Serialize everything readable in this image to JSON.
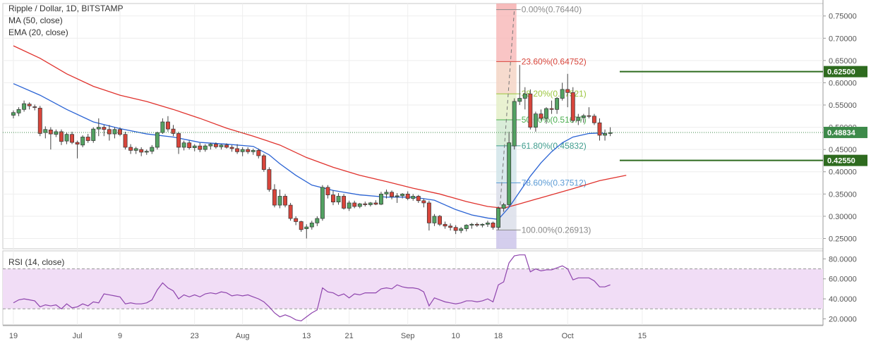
{
  "chart_data": [
    {
      "type": "candlestick",
      "title": "Ripple / Dollar, 1D, BITSTAMP",
      "indicators": [
        "MA (50, close)",
        "EMA (20, close)"
      ],
      "colors": {
        "up": "#53a262",
        "down": "#d8453b",
        "ma50": "#e0322d",
        "ema20": "#2a63d4",
        "fib_zone_up": "#f4a0a0",
        "fib_zone_down": "#c9c2e8"
      },
      "y_ticks": [
        "0.75000",
        "0.70000",
        "0.65000",
        "0.60000",
        "0.55000",
        "0.50000",
        "0.45000",
        "0.40000",
        "0.35000",
        "0.30000",
        "0.25000"
      ],
      "ylim": [
        0.227,
        0.778
      ],
      "x_ticks": [
        {
          "label": "19",
          "day": 0
        },
        {
          "label": "Jul",
          "day": 12
        },
        {
          "label": "9",
          "day": 20
        },
        {
          "label": "23",
          "day": 34
        },
        {
          "label": "Aug",
          "day": 43
        },
        {
          "label": "13",
          "day": 55
        },
        {
          "label": "21",
          "day": 63
        },
        {
          "label": "Sep",
          "day": 74
        },
        {
          "label": "10",
          "day": 83
        },
        {
          "label": "18",
          "day": 91
        },
        {
          "label": "Oct",
          "day": 104
        },
        {
          "label": "15",
          "day": 118
        }
      ],
      "candles": [
        [
          0.527,
          0.538,
          0.52,
          0.533
        ],
        [
          0.532,
          0.545,
          0.525,
          0.54
        ],
        [
          0.54,
          0.56,
          0.535,
          0.553
        ],
        [
          0.552,
          0.556,
          0.54,
          0.548
        ],
        [
          0.546,
          0.551,
          0.538,
          0.545
        ],
        [
          0.543,
          0.548,
          0.48,
          0.486
        ],
        [
          0.488,
          0.502,
          0.475,
          0.495
        ],
        [
          0.494,
          0.5,
          0.45,
          0.485
        ],
        [
          0.484,
          0.495,
          0.478,
          0.49
        ],
        [
          0.49,
          0.495,
          0.46,
          0.468
        ],
        [
          0.469,
          0.488,
          0.462,
          0.484
        ],
        [
          0.484,
          0.49,
          0.462,
          0.466
        ],
        [
          0.466,
          0.47,
          0.43,
          0.462
        ],
        [
          0.46,
          0.482,
          0.455,
          0.478
        ],
        [
          0.478,
          0.485,
          0.465,
          0.47
        ],
        [
          0.47,
          0.5,
          0.465,
          0.496
        ],
        [
          0.496,
          0.52,
          0.48,
          0.5
        ],
        [
          0.5,
          0.505,
          0.48,
          0.495
        ],
        [
          0.495,
          0.505,
          0.47,
          0.485
        ],
        [
          0.485,
          0.5,
          0.475,
          0.495
        ],
        [
          0.495,
          0.5,
          0.48,
          0.484
        ],
        [
          0.484,
          0.49,
          0.45,
          0.455
        ],
        [
          0.455,
          0.462,
          0.44,
          0.448
        ],
        [
          0.448,
          0.456,
          0.44,
          0.452
        ],
        [
          0.45,
          0.455,
          0.435,
          0.444
        ],
        [
          0.444,
          0.45,
          0.438,
          0.446
        ],
        [
          0.446,
          0.46,
          0.44,
          0.455
        ],
        [
          0.455,
          0.49,
          0.45,
          0.488
        ],
        [
          0.488,
          0.52,
          0.485,
          0.512
        ],
        [
          0.512,
          0.525,
          0.49,
          0.496
        ],
        [
          0.496,
          0.505,
          0.48,
          0.486
        ],
        [
          0.486,
          0.49,
          0.44,
          0.455
        ],
        [
          0.455,
          0.47,
          0.448,
          0.465
        ],
        [
          0.465,
          0.47,
          0.45,
          0.454
        ],
        [
          0.454,
          0.462,
          0.446,
          0.458
        ],
        [
          0.458,
          0.465,
          0.444,
          0.45
        ],
        [
          0.45,
          0.462,
          0.445,
          0.458
        ],
        [
          0.458,
          0.465,
          0.45,
          0.462
        ],
        [
          0.462,
          0.466,
          0.452,
          0.456
        ],
        [
          0.456,
          0.462,
          0.45,
          0.46
        ],
        [
          0.46,
          0.464,
          0.452,
          0.455
        ],
        [
          0.455,
          0.46,
          0.445,
          0.452
        ],
        [
          0.452,
          0.462,
          0.44,
          0.445
        ],
        [
          0.445,
          0.455,
          0.435,
          0.45
        ],
        [
          0.45,
          0.455,
          0.44,
          0.445
        ],
        [
          0.445,
          0.452,
          0.438,
          0.448
        ],
        [
          0.448,
          0.452,
          0.43,
          0.436
        ],
        [
          0.436,
          0.44,
          0.4,
          0.405
        ],
        [
          0.405,
          0.41,
          0.355,
          0.36
        ],
        [
          0.36,
          0.372,
          0.32,
          0.325
        ],
        [
          0.325,
          0.36,
          0.318,
          0.345
        ],
        [
          0.345,
          0.35,
          0.32,
          0.325
        ],
        [
          0.325,
          0.33,
          0.29,
          0.295
        ],
        [
          0.295,
          0.3,
          0.28,
          0.288
        ],
        [
          0.288,
          0.29,
          0.265,
          0.27
        ],
        [
          0.272,
          0.282,
          0.25,
          0.276
        ],
        [
          0.276,
          0.29,
          0.27,
          0.285
        ],
        [
          0.285,
          0.3,
          0.278,
          0.295
        ],
        [
          0.295,
          0.37,
          0.29,
          0.365
        ],
        [
          0.365,
          0.37,
          0.34,
          0.348
        ],
        [
          0.348,
          0.358,
          0.325,
          0.332
        ],
        [
          0.332,
          0.352,
          0.326,
          0.345
        ],
        [
          0.345,
          0.35,
          0.315,
          0.318
        ],
        [
          0.318,
          0.335,
          0.312,
          0.33
        ],
        [
          0.33,
          0.335,
          0.318,
          0.322
        ],
        [
          0.322,
          0.33,
          0.318,
          0.328
        ],
        [
          0.328,
          0.333,
          0.322,
          0.326
        ],
        [
          0.326,
          0.332,
          0.322,
          0.33
        ],
        [
          0.33,
          0.336,
          0.325,
          0.327
        ],
        [
          0.327,
          0.355,
          0.325,
          0.35
        ],
        [
          0.35,
          0.36,
          0.34,
          0.354
        ],
        [
          0.354,
          0.358,
          0.338,
          0.344
        ],
        [
          0.344,
          0.352,
          0.33,
          0.346
        ],
        [
          0.346,
          0.352,
          0.34,
          0.35
        ],
        [
          0.35,
          0.356,
          0.336,
          0.34
        ],
        [
          0.34,
          0.35,
          0.335,
          0.345
        ],
        [
          0.345,
          0.348,
          0.33,
          0.335
        ],
        [
          0.335,
          0.34,
          0.32,
          0.33
        ],
        [
          0.33,
          0.335,
          0.268,
          0.285
        ],
        [
          0.285,
          0.305,
          0.278,
          0.3
        ],
        [
          0.3,
          0.303,
          0.278,
          0.282
        ],
        [
          0.282,
          0.288,
          0.272,
          0.278
        ],
        [
          0.278,
          0.284,
          0.268,
          0.275
        ],
        [
          0.275,
          0.28,
          0.26,
          0.268
        ],
        [
          0.268,
          0.276,
          0.262,
          0.272
        ],
        [
          0.272,
          0.282,
          0.266,
          0.28
        ],
        [
          0.28,
          0.285,
          0.272,
          0.282
        ],
        [
          0.282,
          0.286,
          0.276,
          0.28
        ],
        [
          0.28,
          0.284,
          0.275,
          0.282
        ],
        [
          0.282,
          0.29,
          0.276,
          0.285
        ],
        [
          0.285,
          0.288,
          0.27,
          0.275
        ],
        [
          0.275,
          0.322,
          0.27,
          0.318
        ],
        [
          0.318,
          0.33,
          0.31,
          0.326
        ],
        [
          0.326,
          0.49,
          0.322,
          0.465
        ],
        [
          0.458,
          0.565,
          0.45,
          0.558
        ],
        [
          0.558,
          0.64,
          0.55,
          0.565
        ],
        [
          0.565,
          0.59,
          0.54,
          0.575
        ],
        [
          0.575,
          0.585,
          0.495,
          0.5
        ],
        [
          0.5,
          0.535,
          0.49,
          0.53
        ],
        [
          0.53,
          0.54,
          0.515,
          0.52
        ],
        [
          0.52,
          0.545,
          0.508,
          0.542
        ],
        [
          0.542,
          0.56,
          0.53,
          0.54
        ],
        [
          0.54,
          0.568,
          0.53,
          0.565
        ],
        [
          0.565,
          0.6,
          0.56,
          0.585
        ],
        [
          0.585,
          0.62,
          0.545,
          0.578
        ],
        [
          0.578,
          0.59,
          0.51,
          0.515
        ],
        [
          0.515,
          0.53,
          0.505,
          0.522
        ],
        [
          0.522,
          0.53,
          0.51,
          0.526
        ],
        [
          0.526,
          0.545,
          0.52,
          0.525
        ],
        [
          0.525,
          0.53,
          0.505,
          0.51
        ],
        [
          0.51,
          0.52,
          0.47,
          0.482
        ],
        [
          0.482,
          0.495,
          0.47,
          0.486
        ],
        [
          0.486,
          0.5,
          0.48,
          0.488
        ]
      ],
      "ema20": [
        [
          0,
          0.598
        ],
        [
          5,
          0.572
        ],
        [
          10,
          0.54
        ],
        [
          15,
          0.512
        ],
        [
          20,
          0.497
        ],
        [
          25,
          0.485
        ],
        [
          30,
          0.478
        ],
        [
          35,
          0.466
        ],
        [
          40,
          0.462
        ],
        [
          45,
          0.457
        ],
        [
          48,
          0.438
        ],
        [
          50,
          0.418
        ],
        [
          53,
          0.392
        ],
        [
          56,
          0.37
        ],
        [
          60,
          0.358
        ],
        [
          65,
          0.348
        ],
        [
          70,
          0.343
        ],
        [
          75,
          0.343
        ],
        [
          79,
          0.336
        ],
        [
          83,
          0.315
        ],
        [
          86,
          0.303
        ],
        [
          89,
          0.296
        ],
        [
          91,
          0.293
        ],
        [
          93,
          0.32
        ],
        [
          95,
          0.355
        ],
        [
          97,
          0.39
        ],
        [
          99,
          0.42
        ],
        [
          101,
          0.445
        ],
        [
          103,
          0.465
        ],
        [
          105,
          0.478
        ],
        [
          108,
          0.486
        ],
        [
          110,
          0.487
        ],
        [
          111,
          0.486
        ]
      ],
      "ma50": [
        [
          0,
          0.683
        ],
        [
          5,
          0.655
        ],
        [
          10,
          0.62
        ],
        [
          15,
          0.592
        ],
        [
          20,
          0.572
        ],
        [
          25,
          0.558
        ],
        [
          30,
          0.54
        ],
        [
          35,
          0.52
        ],
        [
          40,
          0.498
        ],
        [
          45,
          0.48
        ],
        [
          50,
          0.46
        ],
        [
          55,
          0.432
        ],
        [
          60,
          0.41
        ],
        [
          65,
          0.392
        ],
        [
          70,
          0.378
        ],
        [
          75,
          0.363
        ],
        [
          80,
          0.35
        ],
        [
          85,
          0.333
        ],
        [
          89,
          0.322
        ],
        [
          92,
          0.318
        ],
        [
          95,
          0.328
        ],
        [
          100,
          0.345
        ],
        [
          105,
          0.362
        ],
        [
          110,
          0.38
        ],
        [
          115,
          0.392
        ]
      ],
      "fibonacci": {
        "start_day": 91,
        "end_day": 94,
        "low": 0.26913,
        "high": 0.7644,
        "levels": [
          {
            "label": "0.00%(0.76440)",
            "value": 0.7644,
            "color": "#8a8a8a"
          },
          {
            "label": "23.60%(0.64752)",
            "value": 0.64752,
            "color": "#d8453b"
          },
          {
            "label": "38.20%(0.57521)",
            "value": 0.57521,
            "color": "#9bc53d"
          },
          {
            "label": "50.00%(0.51677)",
            "value": 0.51677,
            "color": "#4caf50"
          },
          {
            "label": "61.80%(0.45832)",
            "value": 0.45832,
            "color": "#3f9c8d"
          },
          {
            "label": "78.60%(0.37512)",
            "value": 0.37512,
            "color": "#5b9bd5"
          },
          {
            "label": "100.00%(0.26913)",
            "value": 0.26913,
            "color": "#8a8a8a"
          }
        ]
      },
      "horizontal_lines": [
        {
          "label": "0.62500",
          "value": 0.625,
          "color": "#2e6b1f"
        },
        {
          "label": "0.42550",
          "value": 0.4255,
          "color": "#2e6b1f"
        }
      ],
      "last_price": {
        "label": "0.48834",
        "value": 0.48834,
        "color": "#3d8a4a"
      }
    },
    {
      "type": "line",
      "title": "RSI (14, close)",
      "color": "#8e44ad",
      "y_ticks": [
        "80.0000",
        "60.0000",
        "40.0000",
        "20.0000"
      ],
      "ylim": [
        14,
        88
      ],
      "band": [
        30,
        70
      ],
      "values": [
        36,
        39,
        40,
        39,
        38,
        32,
        34,
        33,
        34,
        30,
        35,
        31,
        32,
        35,
        33,
        37,
        36,
        45,
        44,
        43,
        42,
        35,
        36,
        35,
        35,
        36,
        39,
        49,
        56,
        51,
        48,
        40,
        44,
        42,
        44,
        42,
        45,
        46,
        45,
        47,
        46,
        43,
        44,
        43,
        44,
        42,
        40,
        37,
        32,
        26,
        22,
        24,
        22,
        19,
        18,
        22,
        26,
        29,
        51,
        47,
        46,
        43,
        45,
        41,
        45,
        44,
        46,
        46,
        46,
        50,
        51,
        50,
        54,
        52,
        51,
        51,
        50,
        47,
        33,
        41,
        39,
        37,
        36,
        35,
        36,
        38,
        38,
        37,
        38,
        40,
        37,
        54,
        57,
        76,
        83,
        84,
        84,
        67,
        70,
        68,
        69,
        69,
        71,
        73,
        70,
        59,
        61,
        61,
        61,
        58,
        52,
        52,
        54
      ]
    }
  ]
}
